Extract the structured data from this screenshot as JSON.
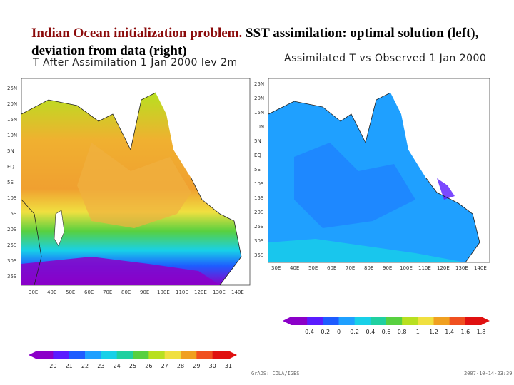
{
  "title": {
    "highlight": "Indian Ocean initialization problem.",
    "rest": " SST assimilation: optimal solution (left), deviation from data (right)"
  },
  "left_map": {
    "caption": "T After Assimilation 1 Jan 2000 lev 2m",
    "lat_labels": [
      "25N",
      "20N",
      "15N",
      "10N",
      "5N",
      "EQ",
      "5S",
      "10S",
      "15S",
      "20S",
      "25S",
      "30S",
      "35S"
    ],
    "lon_labels": [
      "30E",
      "40E",
      "50E",
      "60E",
      "70E",
      "80E",
      "90E",
      "100E",
      "110E",
      "120E",
      "130E",
      "140E"
    ],
    "colorbar": {
      "labels": [
        "20",
        "21",
        "22",
        "23",
        "24",
        "25",
        "26",
        "27",
        "28",
        "29",
        "30",
        "31"
      ],
      "colors": [
        "#8b00c8",
        "#5a1cff",
        "#1e5cff",
        "#1fa0ff",
        "#18d0e8",
        "#20d0a0",
        "#58d040",
        "#b8e020",
        "#f0e040",
        "#f0a020",
        "#f05020",
        "#e01010"
      ]
    }
  },
  "right_map": {
    "caption": "Assimilated T vs Observed 1 Jan 2000",
    "lat_labels": [
      "25N",
      "20N",
      "15N",
      "10N",
      "5N",
      "EQ",
      "5S",
      "10S",
      "15S",
      "20S",
      "25S",
      "30S",
      "35S"
    ],
    "lon_labels": [
      "30E",
      "40E",
      "50E",
      "60E",
      "70E",
      "80E",
      "90E",
      "100E",
      "110E",
      "120E",
      "130E",
      "140E"
    ],
    "colorbar": {
      "labels": [
        "−0.4",
        "−0.2",
        "0",
        "0.2",
        "0.4",
        "0.6",
        "0.8",
        "1",
        "1.2",
        "1.4",
        "1.6",
        "1.8"
      ],
      "colors": [
        "#8b00c8",
        "#5a1cff",
        "#1e5cff",
        "#1fa0ff",
        "#18d0e8",
        "#20d0a0",
        "#58d040",
        "#b8e020",
        "#f0e040",
        "#f0a020",
        "#f05020",
        "#e01010"
      ]
    }
  },
  "credits": {
    "left": "GrADS: COLA/IGES",
    "right": "2007-10-14-23:39"
  }
}
